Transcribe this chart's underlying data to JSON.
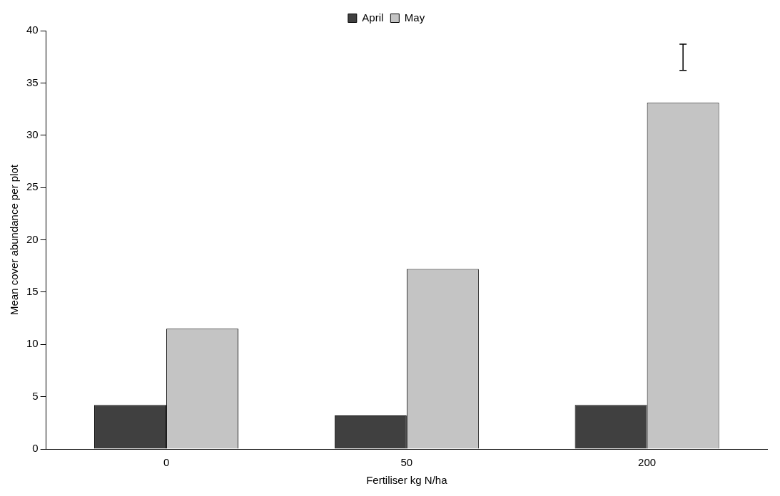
{
  "chart_data": {
    "type": "bar",
    "xlabel": "Fertiliser kg N/ha",
    "ylabel": "Mean cover abundance per plot",
    "categories": [
      "0",
      "50",
      "200"
    ],
    "series": [
      {
        "name": "April",
        "color": "#404040",
        "values": [
          4.2,
          3.2,
          4.2
        ]
      },
      {
        "name": "May",
        "color": "#c4c4c4",
        "values": [
          11.5,
          17.2,
          33.1
        ],
        "errors": [
          null,
          null,
          [
            36.2,
            38.7
          ]
        ]
      }
    ],
    "ylim": [
      0,
      40
    ],
    "yticks": [
      0,
      5,
      10,
      15,
      20,
      25,
      30,
      35,
      40
    ],
    "grid": false,
    "legend": "top"
  }
}
